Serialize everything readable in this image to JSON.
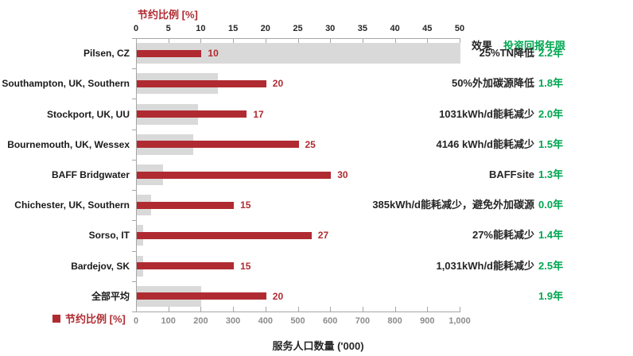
{
  "chart_data": {
    "type": "bar",
    "orientation": "horizontal",
    "categories": [
      "Pilsen, CZ",
      "Southampton, UK, Southern",
      "Stockport, UK, UU",
      "Bournemouth, UK, Wessex",
      "BAFF Bridgwater",
      "Chichester, UK, Southern",
      "Sorso, IT",
      "Bardejov, SK",
      "全部平均"
    ],
    "series": [
      {
        "name": "节约比例 [%]",
        "axis": "top",
        "color": "#b02b31",
        "values": [
          10,
          20,
          17,
          25,
          30,
          15,
          27,
          15,
          20
        ]
      },
      {
        "name": "服务人口数量 ('000)",
        "axis": "bottom",
        "color": "#d9d9d9",
        "values": [
          1000,
          250,
          190,
          175,
          80,
          45,
          20,
          20,
          200
        ]
      }
    ],
    "top_axis": {
      "title": "节约比例 [%]",
      "min": 0,
      "max": 50,
      "ticks": [
        "0",
        "5",
        "10",
        "15",
        "20",
        "25",
        "30",
        "35",
        "40",
        "45",
        "50"
      ]
    },
    "bottom_axis": {
      "title": "服务人口数量 ('000)",
      "min": 0,
      "max": 1000,
      "ticks": [
        "0",
        "100",
        "200",
        "300",
        "400",
        "500",
        "600",
        "700",
        "800",
        "900",
        "1,000"
      ]
    },
    "legend": {
      "label": "节约比例 [%]",
      "color": "#b02b31"
    },
    "right_columns": {
      "effect_header": "效果",
      "payback_header": "投资回报年限",
      "rows": [
        {
          "effect": "25%TN降低",
          "payback": "2.2年"
        },
        {
          "effect": "50%外加碳源降低",
          "payback": "1.8年"
        },
        {
          "effect": "1031kWh/d能耗减少",
          "payback": "2.0年"
        },
        {
          "effect": "4146 kWh/d能耗减少",
          "payback": "1.5年"
        },
        {
          "effect": "BAFFsite",
          "payback": "1.3年"
        },
        {
          "effect": "385kWh/d能耗减少，避免外加碳源",
          "payback": "0.0年"
        },
        {
          "effect": "27%能耗减少",
          "payback": "1.4年"
        },
        {
          "effect": "1,031kWh/d能耗减少",
          "payback": "2.5年"
        },
        {
          "effect": "",
          "payback": "1.9年"
        }
      ]
    },
    "colors": {
      "bar_red": "#b02b31",
      "bar_gray": "#d9d9d9",
      "green": "#00a651",
      "axis_line": "#a6a6a6",
      "text_dark": "#262626",
      "bottom_tick_text": "#8c8c8c"
    }
  }
}
